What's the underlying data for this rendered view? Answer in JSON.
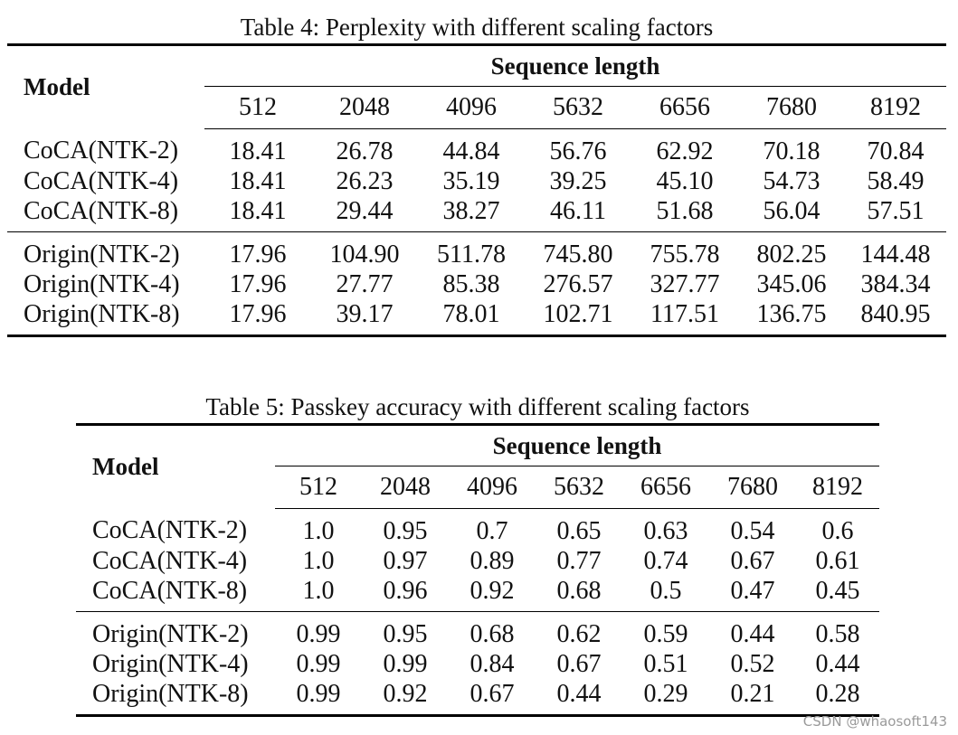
{
  "table4": {
    "caption": "Table 4: Perplexity with different scaling factors",
    "model_header": "Model",
    "group_header": "Sequence length",
    "lengths": [
      "512",
      "2048",
      "4096",
      "5632",
      "6656",
      "7680",
      "8192"
    ],
    "groups": [
      [
        {
          "model": "CoCA(NTK-2)",
          "values": [
            "18.41",
            "26.78",
            "44.84",
            "56.76",
            "62.92",
            "70.18",
            "70.84"
          ]
        },
        {
          "model": "CoCA(NTK-4)",
          "values": [
            "18.41",
            "26.23",
            "35.19",
            "39.25",
            "45.10",
            "54.73",
            "58.49"
          ]
        },
        {
          "model": "CoCA(NTK-8)",
          "values": [
            "18.41",
            "29.44",
            "38.27",
            "46.11",
            "51.68",
            "56.04",
            "57.51"
          ]
        }
      ],
      [
        {
          "model": "Origin(NTK-2)",
          "values": [
            "17.96",
            "104.90",
            "511.78",
            "745.80",
            "755.78",
            "802.25",
            "144.48"
          ]
        },
        {
          "model": "Origin(NTK-4)",
          "values": [
            "17.96",
            "27.77",
            "85.38",
            "276.57",
            "327.77",
            "345.06",
            "384.34"
          ]
        },
        {
          "model": "Origin(NTK-8)",
          "values": [
            "17.96",
            "39.17",
            "78.01",
            "102.71",
            "117.51",
            "136.75",
            "840.95"
          ]
        }
      ]
    ]
  },
  "table5": {
    "caption": "Table 5: Passkey accuracy with different scaling factors",
    "model_header": "Model",
    "group_header": "Sequence length",
    "lengths": [
      "512",
      "2048",
      "4096",
      "5632",
      "6656",
      "7680",
      "8192"
    ],
    "groups": [
      [
        {
          "model": "CoCA(NTK-2)",
          "values": [
            "1.0",
            "0.95",
            "0.7",
            "0.65",
            "0.63",
            "0.54",
            "0.6"
          ]
        },
        {
          "model": "CoCA(NTK-4)",
          "values": [
            "1.0",
            "0.97",
            "0.89",
            "0.77",
            "0.74",
            "0.67",
            "0.61"
          ]
        },
        {
          "model": "CoCA(NTK-8)",
          "values": [
            "1.0",
            "0.96",
            "0.92",
            "0.68",
            "0.5",
            "0.47",
            "0.45"
          ]
        }
      ],
      [
        {
          "model": "Origin(NTK-2)",
          "values": [
            "0.99",
            "0.95",
            "0.68",
            "0.62",
            "0.59",
            "0.44",
            "0.58"
          ]
        },
        {
          "model": "Origin(NTK-4)",
          "values": [
            "0.99",
            "0.99",
            "0.84",
            "0.67",
            "0.51",
            "0.52",
            "0.44"
          ]
        },
        {
          "model": "Origin(NTK-8)",
          "values": [
            "0.99",
            "0.92",
            "0.67",
            "0.44",
            "0.29",
            "0.21",
            "0.28"
          ]
        }
      ]
    ]
  },
  "watermark": "CSDN @whaosoft143"
}
